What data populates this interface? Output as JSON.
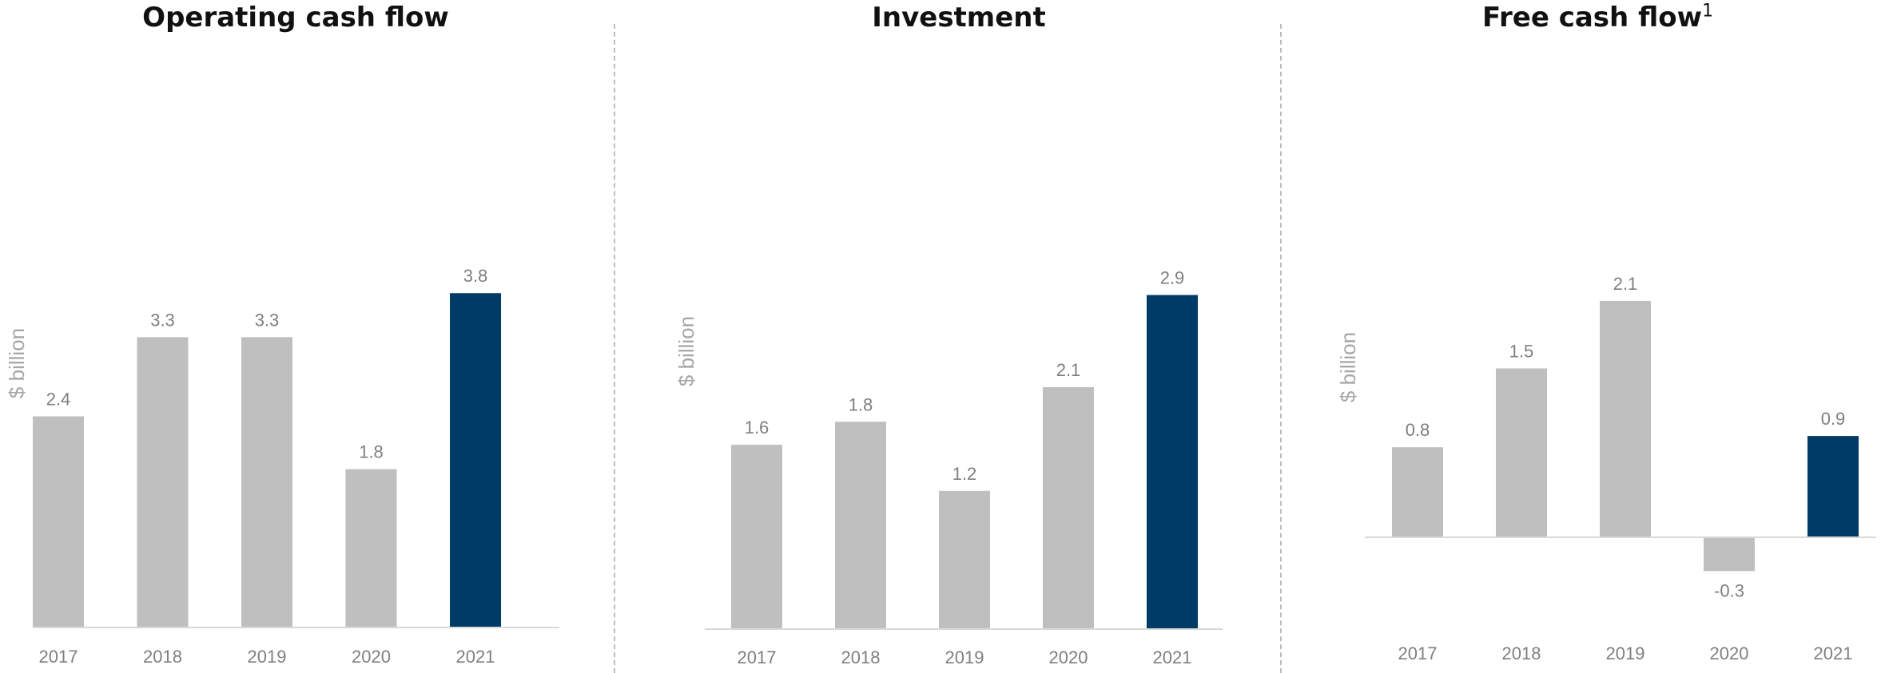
{
  "chart_data": [
    {
      "type": "bar",
      "title": "Operating cash flow",
      "title_sup": "",
      "ylabel": "$ billion",
      "categories": [
        "2017",
        "2018",
        "2019",
        "2020",
        "2021"
      ],
      "values": [
        2.4,
        3.3,
        3.3,
        1.8,
        3.8
      ],
      "value_labels": [
        "2.4",
        "3.3",
        "3.3",
        "1.8",
        "3.8"
      ],
      "highlight_index": 4,
      "ylim": [
        0,
        3.8
      ],
      "grid": false
    },
    {
      "type": "bar",
      "title": "Investment",
      "title_sup": "",
      "ylabel": "$ billion",
      "categories": [
        "2017",
        "2018",
        "2019",
        "2020",
        "2021"
      ],
      "values": [
        1.6,
        1.8,
        1.2,
        2.1,
        2.9
      ],
      "value_labels": [
        "1.6",
        "1.8",
        "1.2",
        "2.1",
        "2.9"
      ],
      "highlight_index": 4,
      "ylim": [
        0,
        2.9
      ],
      "grid": false
    },
    {
      "type": "bar",
      "title": "Free cash flow",
      "title_sup": "1",
      "ylabel": "$ billion",
      "categories": [
        "2017",
        "2018",
        "2019",
        "2020",
        "2021"
      ],
      "values": [
        0.8,
        1.5,
        2.1,
        -0.3,
        0.9
      ],
      "value_labels": [
        "0.8",
        "1.5",
        "2.1",
        "-0.3",
        "0.9"
      ],
      "highlight_index": 4,
      "ylim": [
        -0.3,
        2.1
      ],
      "grid": false
    }
  ],
  "colors": {
    "bar": "#bfbfbf",
    "highlight": "#003a66",
    "axis": "#d9d9d9",
    "text": "#7f7f7f"
  }
}
